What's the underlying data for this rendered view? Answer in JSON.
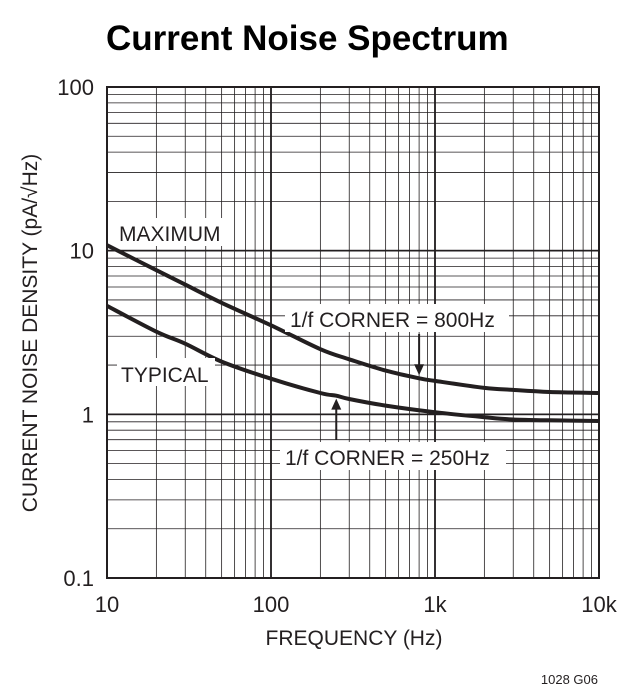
{
  "chart_data": {
    "type": "line",
    "title": "Current Noise Spectrum",
    "xlabel": "FREQUENCY (Hz)",
    "ylabel": "CURRENT NOISE DENSITY (pA/√Hz)",
    "x_scale": "log",
    "y_scale": "log",
    "xlim": [
      10,
      10000
    ],
    "ylim": [
      0.1,
      100
    ],
    "x_ticks": [
      {
        "value": 10,
        "label": "10"
      },
      {
        "value": 100,
        "label": "100"
      },
      {
        "value": 1000,
        "label": "1k"
      },
      {
        "value": 10000,
        "label": "10k"
      }
    ],
    "y_ticks": [
      {
        "value": 0.1,
        "label": "0.1"
      },
      {
        "value": 1,
        "label": "1"
      },
      {
        "value": 10,
        "label": "10"
      },
      {
        "value": 100,
        "label": "100"
      }
    ],
    "grid": true,
    "series": [
      {
        "name": "MAXIMUM",
        "x": [
          10,
          20,
          30,
          50,
          100,
          200,
          300,
          500,
          800,
          1000,
          2000,
          3000,
          5000,
          10000
        ],
        "y": [
          10.8,
          7.6,
          6.2,
          4.8,
          3.5,
          2.5,
          2.17,
          1.85,
          1.66,
          1.6,
          1.45,
          1.41,
          1.37,
          1.35
        ]
      },
      {
        "name": "TYPICAL",
        "x": [
          10,
          20,
          30,
          50,
          100,
          200,
          250,
          300,
          500,
          1000,
          2000,
          3000,
          5000,
          10000
        ],
        "y": [
          4.6,
          3.2,
          2.7,
          2.1,
          1.65,
          1.35,
          1.3,
          1.24,
          1.13,
          1.03,
          0.96,
          0.93,
          0.92,
          0.91
        ]
      }
    ],
    "annotations": [
      {
        "text": "1/f CORNER = 800Hz",
        "x": 800,
        "y": 1.66
      },
      {
        "text": "1/f CORNER = 250Hz",
        "x": 250,
        "y": 1.3
      }
    ],
    "figure_id": "1028 G06"
  }
}
